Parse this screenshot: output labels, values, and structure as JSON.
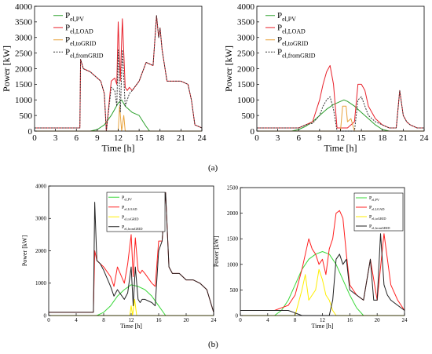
{
  "panel_labels": {
    "a": "(a)",
    "b": "(b)"
  },
  "chart_data": [
    {
      "type": "line",
      "panel": "a-left",
      "xlabel": "Time [h]",
      "ylabel": "Power [kW]",
      "xlim": [
        0,
        24
      ],
      "ylim": [
        0,
        4000
      ],
      "xticks": [
        "0",
        "3",
        "6",
        "9",
        "12",
        "15",
        "18",
        "21",
        "24"
      ],
      "yticks": [
        "0",
        "500",
        "1000",
        "1500",
        "2000",
        "2500",
        "3000",
        "3500",
        "4000"
      ],
      "grid": false,
      "legend": "top-left",
      "series": [
        {
          "name": "Pel,PV",
          "color": "#2ca02c",
          "x": [
            0,
            8,
            9,
            10,
            11,
            12,
            12.5,
            13,
            14,
            15,
            16,
            16.5,
            24
          ],
          "y": [
            0,
            0,
            50,
            200,
            500,
            900,
            1000,
            800,
            600,
            500,
            150,
            0,
            0
          ]
        },
        {
          "name": "Pel,LOAD",
          "color": "#e8212b",
          "x": [
            0,
            6.5,
            6.6,
            7,
            8,
            8.5,
            9,
            9.5,
            10,
            10.3,
            11,
            11.5,
            11.8,
            12,
            12.3,
            12.6,
            13,
            13.3,
            13.6,
            14,
            15,
            16,
            17,
            17.5,
            17.8,
            18,
            18.3,
            19,
            20,
            21,
            22,
            22.5,
            23,
            24
          ],
          "y": [
            100,
            100,
            2300,
            2000,
            1900,
            1800,
            1700,
            1600,
            1200,
            0,
            1600,
            1700,
            1500,
            3500,
            1600,
            3600,
            1400,
            1300,
            1400,
            1300,
            1600,
            2200,
            2100,
            3700,
            3000,
            3300,
            2600,
            1600,
            1600,
            1600,
            1500,
            1000,
            200,
            100
          ]
        },
        {
          "name": "Pel,toGRID",
          "color": "#e8a23b",
          "x": [
            0,
            11.5,
            12,
            12.2,
            12.5,
            12.8,
            13,
            13.2,
            24
          ],
          "y": [
            0,
            0,
            0,
            800,
            0,
            500,
            0,
            0,
            0
          ]
        },
        {
          "name": "Pel,fromGRID",
          "color": "#333333",
          "x": [
            0,
            6.5,
            6.6,
            7,
            8,
            8.5,
            9,
            9.5,
            10,
            10.3,
            11,
            11.5,
            11.8,
            12,
            12.3,
            12.6,
            13,
            13.3,
            13.6,
            14,
            15,
            16,
            17,
            17.5,
            17.8,
            18,
            18.3,
            19,
            20,
            21,
            22,
            22.5,
            23,
            24
          ],
          "y": [
            100,
            100,
            2300,
            2000,
            1900,
            1800,
            1700,
            1600,
            1200,
            0,
            1400,
            1300,
            800,
            2600,
            600,
            2600,
            800,
            1000,
            1200,
            1300,
            1600,
            2200,
            2100,
            3700,
            3000,
            3300,
            2600,
            1600,
            1600,
            1600,
            1500,
            1000,
            200,
            100
          ]
        }
      ]
    },
    {
      "type": "line",
      "panel": "a-right",
      "xlabel": "Time [h]",
      "ylabel": "Power [kW]",
      "xlim": [
        0,
        24
      ],
      "ylim": [
        0,
        4000
      ],
      "xticks": [
        "0",
        "3",
        "6",
        "9",
        "12",
        "15",
        "18",
        "21",
        "24"
      ],
      "yticks": [
        "0",
        "500",
        "1000",
        "1500",
        "2000",
        "2500",
        "3000",
        "3500",
        "4000"
      ],
      "grid": false,
      "legend": "top-left",
      "series": [
        {
          "name": "Pel,PV",
          "color": "#2ca02c",
          "x": [
            0,
            5,
            6,
            7,
            8,
            9,
            10,
            11,
            12,
            12.5,
            13,
            14,
            15,
            16,
            17,
            18,
            19,
            24
          ],
          "y": [
            0,
            0,
            50,
            150,
            300,
            500,
            700,
            850,
            950,
            1000,
            950,
            800,
            600,
            400,
            200,
            50,
            0,
            0
          ]
        },
        {
          "name": "Pel,LOAD",
          "color": "#e8212b",
          "x": [
            0,
            6,
            7,
            8,
            9,
            9.5,
            10,
            10.5,
            11,
            11.5,
            12,
            13,
            14,
            14.5,
            15,
            15.5,
            16,
            17,
            18,
            19,
            20,
            20.5,
            21,
            21.5,
            22,
            23,
            24
          ],
          "y": [
            100,
            100,
            200,
            300,
            1000,
            1500,
            1900,
            2100,
            1500,
            100,
            100,
            100,
            300,
            1500,
            1500,
            1300,
            800,
            400,
            200,
            100,
            100,
            1300,
            500,
            300,
            200,
            100,
            100
          ]
        },
        {
          "name": "Pel,toGRID",
          "color": "#e8a23b",
          "x": [
            0,
            12,
            12.3,
            12.8,
            13,
            13.5,
            14,
            14.5,
            15,
            15.2,
            24
          ],
          "y": [
            0,
            0,
            800,
            800,
            300,
            400,
            0,
            0,
            0,
            0,
            0
          ]
        },
        {
          "name": "Pel,fromGRID",
          "color": "#333333",
          "x": [
            0,
            6,
            7,
            8,
            9,
            9.5,
            10,
            10.5,
            11,
            11.5,
            12,
            13,
            14,
            14.5,
            15,
            15.5,
            16,
            17,
            18,
            19,
            20,
            20.5,
            21,
            21.5,
            22,
            23,
            24
          ],
          "y": [
            100,
            100,
            200,
            250,
            500,
            800,
            1000,
            1100,
            700,
            0,
            0,
            0,
            0,
            1000,
            1100,
            800,
            500,
            300,
            200,
            100,
            100,
            1300,
            500,
            300,
            200,
            100,
            100
          ]
        }
      ]
    },
    {
      "type": "line",
      "panel": "b-left",
      "xlabel": "Time [h]",
      "ylabel": "Power [kW]",
      "xlim": [
        0,
        24
      ],
      "ylim": [
        0,
        4000
      ],
      "xticks": [
        "0",
        "4",
        "8",
        "12",
        "16",
        "20",
        "24"
      ],
      "yticks": [
        "0",
        "1000",
        "2000",
        "3000",
        "4000"
      ],
      "grid": false,
      "legend": "top-center",
      "series": [
        {
          "name": "Pel,PV",
          "color": "#3ad83a",
          "x": [
            0,
            7,
            8,
            9,
            10,
            11,
            12,
            13,
            14,
            15,
            16,
            17,
            24
          ],
          "y": [
            0,
            0,
            100,
            300,
            600,
            800,
            950,
            900,
            800,
            600,
            300,
            0,
            0
          ]
        },
        {
          "name": "Pel,LOAD",
          "color": "#ff2020",
          "x": [
            0,
            6.5,
            6.7,
            7,
            7.5,
            8,
            9,
            9.5,
            10,
            11,
            11.5,
            12,
            12.3,
            12.6,
            13,
            13.3,
            13.6,
            14,
            15,
            15.5,
            16,
            16.5,
            17,
            17.5,
            18,
            19,
            20,
            21,
            22,
            23,
            24
          ],
          "y": [
            100,
            100,
            2000,
            1700,
            1600,
            1500,
            1200,
            900,
            1500,
            1000,
            1600,
            2500,
            1200,
            2400,
            1400,
            1300,
            1400,
            1300,
            1000,
            900,
            2300,
            2300,
            3800,
            1500,
            1300,
            1300,
            1100,
            1100,
            1000,
            800,
            100
          ]
        },
        {
          "name": "Pel,toGRID",
          "color": "#ffee00",
          "x": [
            0,
            11.8,
            12,
            12.2,
            12.5,
            12.8,
            13,
            24
          ],
          "y": [
            0,
            0,
            300,
            0,
            500,
            0,
            0,
            0
          ]
        },
        {
          "name": "Pel,fromGRID",
          "color": "#222222",
          "x": [
            0,
            6.5,
            6.7,
            7,
            7.5,
            8,
            9,
            9.5,
            10,
            11,
            11.5,
            12,
            12.3,
            12.6,
            13,
            13.3,
            13.6,
            14,
            15,
            15.5,
            16,
            16.5,
            17,
            17.5,
            18,
            19,
            20,
            21,
            22,
            23,
            24
          ],
          "y": [
            100,
            100,
            3500,
            1700,
            1600,
            1400,
            900,
            600,
            800,
            500,
            700,
            1500,
            300,
            1500,
            500,
            400,
            500,
            500,
            400,
            300,
            2000,
            2300,
            3800,
            1500,
            1300,
            1300,
            1100,
            1100,
            1000,
            800,
            100
          ]
        }
      ]
    },
    {
      "type": "line",
      "panel": "b-right",
      "xlabel": "Time [h]",
      "ylabel": "Power [kW]",
      "xlim": [
        0,
        24
      ],
      "ylim": [
        0,
        2500
      ],
      "xticks": [
        "0",
        "4",
        "8",
        "12",
        "16",
        "20",
        "24"
      ],
      "yticks": [
        "0",
        "500",
        "1000",
        "1500",
        "2000",
        "2500"
      ],
      "grid": false,
      "legend": "top-right",
      "series": [
        {
          "name": "Pel,PV",
          "color": "#3ad83a",
          "x": [
            0,
            5,
            6,
            7,
            8,
            9,
            10,
            11,
            12,
            13,
            14,
            15,
            16,
            17,
            18,
            24
          ],
          "y": [
            0,
            0,
            100,
            300,
            600,
            900,
            1100,
            1200,
            1250,
            1200,
            1000,
            700,
            400,
            150,
            0,
            0
          ]
        },
        {
          "name": "Pel,LOAD",
          "color": "#ff2020",
          "x": [
            0,
            5,
            6,
            7,
            8,
            9,
            10,
            10.5,
            11,
            11.5,
            12,
            12.5,
            13,
            13.5,
            14,
            14.5,
            15,
            15.5,
            16,
            17,
            18,
            19,
            20,
            21,
            22,
            23,
            24
          ],
          "y": [
            100,
            100,
            150,
            200,
            400,
            900,
            1500,
            1300,
            1200,
            1000,
            1100,
            800,
            1300,
            1500,
            2000,
            2050,
            1900,
            1200,
            600,
            400,
            300,
            1100,
            300,
            1600,
            600,
            300,
            100
          ]
        },
        {
          "name": "Pel,toGRID",
          "color": "#ffee00",
          "x": [
            0,
            8,
            9,
            9.5,
            10,
            11,
            11.5,
            12,
            12.5,
            13,
            13.5,
            14,
            24
          ],
          "y": [
            0,
            0,
            500,
            800,
            300,
            500,
            900,
            700,
            400,
            300,
            100,
            0,
            0
          ]
        },
        {
          "name": "Pel,fromGRID",
          "color": "#222222",
          "x": [
            0,
            5,
            6,
            7,
            8,
            9,
            10,
            11,
            12,
            13,
            13.5,
            14,
            14.5,
            15,
            15.5,
            16,
            17,
            18,
            19,
            19.5,
            20,
            20.5,
            21,
            21.5,
            22,
            23,
            24
          ],
          "y": [
            100,
            100,
            100,
            100,
            50,
            0,
            0,
            0,
            0,
            0,
            300,
            1100,
            1200,
            1000,
            1100,
            500,
            400,
            300,
            1100,
            300,
            300,
            1600,
            600,
            400,
            300,
            200,
            100
          ]
        }
      ]
    }
  ]
}
